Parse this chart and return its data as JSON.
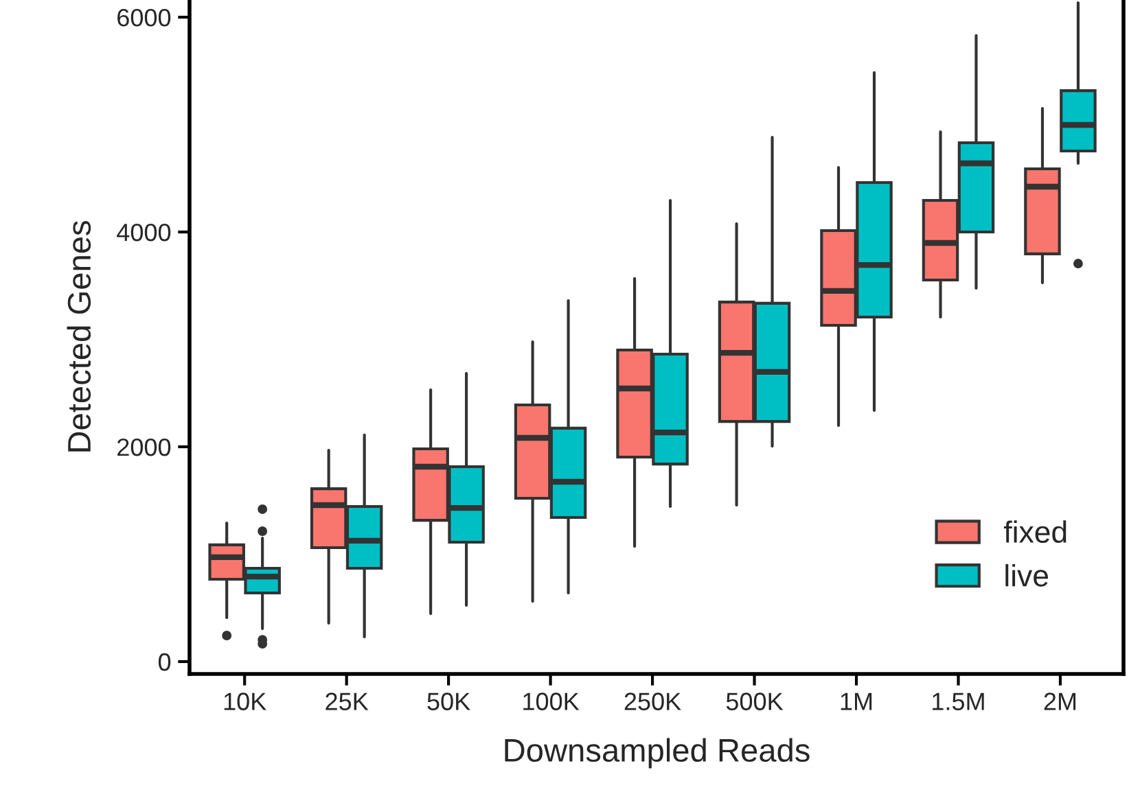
{
  "chart_data": {
    "type": "box",
    "xlabel": "Downsampled Reads",
    "ylabel": "Detected Genes",
    "categories": [
      "10K",
      "25K",
      "50K",
      "100K",
      "250K",
      "500K",
      "1M",
      "1.5M",
      "2M"
    ],
    "ylim": [
      -115,
      6160
    ],
    "yticks": [
      0,
      2000,
      4000,
      6000
    ],
    "grid": false,
    "legend": "bottom right",
    "series": [
      {
        "name": "fixed",
        "color": "#f8766d",
        "boxes": [
          {
            "low": 409,
            "q1": 767,
            "median": 972,
            "q3": 1087,
            "high": 1290,
            "outliers": [
              243
            ]
          },
          {
            "low": 358,
            "q1": 1061,
            "median": 1457,
            "q3": 1610,
            "high": 1968
          },
          {
            "low": 447,
            "q1": 1316,
            "median": 1815,
            "q3": 1981,
            "high": 2530
          },
          {
            "low": 562,
            "q1": 1521,
            "median": 2083,
            "q3": 2390,
            "high": 2978
          },
          {
            "low": 1074,
            "q1": 1904,
            "median": 2543,
            "q3": 2901,
            "high": 3566
          },
          {
            "low": 1457,
            "q1": 2236,
            "median": 2875,
            "q3": 3348,
            "high": 4077
          },
          {
            "low": 2198,
            "q1": 3131,
            "median": 3451,
            "q3": 4013,
            "high": 4601
          },
          {
            "low": 3208,
            "q1": 3553,
            "median": 3898,
            "q3": 4294,
            "high": 4933
          },
          {
            "low": 3527,
            "q1": 3796,
            "median": 4422,
            "q3": 4588,
            "high": 5150
          }
        ]
      },
      {
        "name": "live",
        "color": "#00bfc4",
        "boxes": [
          {
            "low": 307,
            "q1": 639,
            "median": 792,
            "q3": 869,
            "high": 1150,
            "outliers": [
              1419,
              1214,
              204,
              166
            ]
          },
          {
            "low": 230,
            "q1": 869,
            "median": 1125,
            "q3": 1444,
            "high": 2109
          },
          {
            "low": 524,
            "q1": 1112,
            "median": 1431,
            "q3": 1815,
            "high": 2684
          },
          {
            "low": 639,
            "q1": 1342,
            "median": 1674,
            "q3": 2173,
            "high": 3361
          },
          {
            "low": 1444,
            "q1": 1840,
            "median": 2134,
            "q3": 2863,
            "high": 4294
          },
          {
            "low": 2006,
            "q1": 2236,
            "median": 2697,
            "q3": 3336,
            "high": 4882
          },
          {
            "low": 2339,
            "q1": 3208,
            "median": 3693,
            "q3": 4460,
            "high": 5483
          },
          {
            "low": 3476,
            "q1": 4000,
            "median": 4639,
            "q3": 4831,
            "high": 5828
          },
          {
            "low": 4639,
            "q1": 4754,
            "median": 4997,
            "q3": 5316,
            "high": 6134,
            "outliers": [
              3706
            ]
          }
        ]
      }
    ]
  }
}
